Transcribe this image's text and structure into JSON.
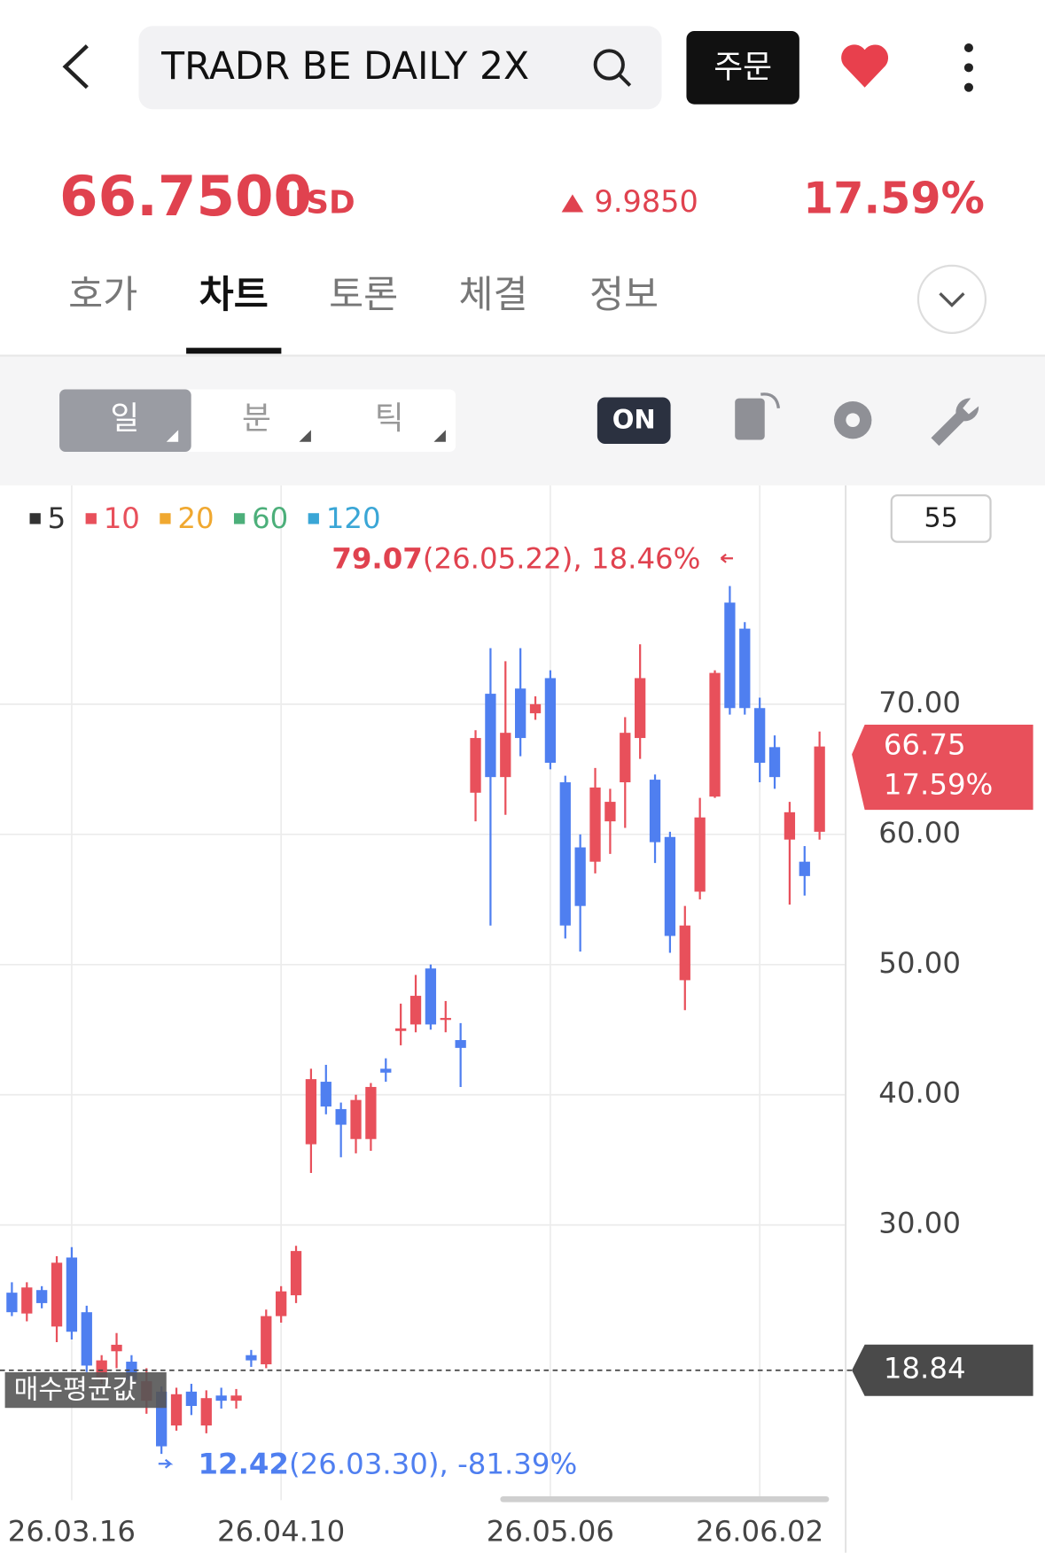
{
  "header": {
    "title": "TRADR BE DAILY 2X",
    "order_button": "주문"
  },
  "quote": {
    "price": "66.7500",
    "currency": "USD",
    "change": "9.9850",
    "change_percent": "17.59%"
  },
  "tabs": [
    "호가",
    "차트",
    "토론",
    "체결",
    "정보"
  ],
  "periods": [
    "일",
    "분",
    "틱"
  ],
  "toggle": "ON",
  "chart_data": {
    "type": "candlestick",
    "moving_averages": [
      {
        "name": "5",
        "color": "#333333"
      },
      {
        "name": "10",
        "color": "#e8505b"
      },
      {
        "name": "20",
        "color": "#f0a830"
      },
      {
        "name": "60",
        "color": "#4caf7a"
      },
      {
        "name": "120",
        "color": "#3aa6d6"
      }
    ],
    "visible_count": 55,
    "categories": [
      null,
      null,
      null,
      null,
      "26.03.16",
      null,
      null,
      null,
      null,
      null,
      null,
      null,
      null,
      null,
      null,
      null,
      null,
      null,
      "26.04.10",
      null,
      null,
      null,
      null,
      null,
      null,
      null,
      null,
      null,
      null,
      null,
      null,
      null,
      null,
      null,
      null,
      null,
      "26.05.06",
      null,
      null,
      null,
      null,
      null,
      null,
      null,
      null,
      null,
      null,
      null,
      null,
      null,
      "26.06.02",
      null,
      null,
      null,
      null
    ],
    "open": [
      24.8,
      23.2,
      25,
      22.2,
      27.5,
      23.3,
      18.3,
      20.3,
      19.5,
      16.5,
      17.2,
      14.6,
      17.2,
      14.6,
      16.9,
      16.5,
      20,
      19.3,
      23,
      24.6,
      36.2,
      41,
      38.9,
      36.6,
      36.6,
      42,
      44.9,
      45.4,
      49.7,
      45.8,
      44.2,
      63.2,
      70.8,
      64.4,
      71.2,
      69.3,
      72,
      64,
      59,
      57.9,
      61,
      64,
      67.4,
      64.2,
      59.8,
      48.8,
      55.6,
      62.9,
      77.8,
      75.8,
      69.7,
      66.7,
      59.6,
      57.9,
      60.2
    ],
    "high": [
      25.6,
      25.6,
      25.3,
      27.6,
      28.3,
      23.8,
      20,
      21.7,
      20,
      19,
      17.6,
      17.5,
      17.8,
      17.3,
      17.5,
      17.4,
      20.4,
      23.5,
      25.3,
      28.4,
      42,
      42.3,
      39.4,
      40,
      40.9,
      42.8,
      47,
      49.2,
      50,
      47.2,
      45.5,
      68,
      74.3,
      73.3,
      74.3,
      70.6,
      72.6,
      64.5,
      60,
      65.1,
      63.5,
      69,
      74.6,
      64.6,
      60.2,
      54.5,
      62.8,
      72.6,
      79.07,
      76.3,
      70.5,
      67.6,
      62.5,
      59.1,
      67.9
    ],
    "low": [
      23,
      22.6,
      23.6,
      21,
      21.2,
      18.7,
      17.8,
      19,
      17.6,
      15.5,
      12.42,
      14.2,
      15.4,
      14,
      15.9,
      15.9,
      19.1,
      19,
      22.5,
      24,
      34,
      38.5,
      35.2,
      35.5,
      35.7,
      41,
      43.8,
      44.8,
      45,
      44.8,
      40.6,
      61,
      53,
      61.5,
      66,
      68.8,
      65,
      52,
      51,
      57,
      58.5,
      60.5,
      65.8,
      57.8,
      50.9,
      46.5,
      55,
      62.8,
      69.2,
      69.2,
      64,
      63.5,
      54.6,
      55.3,
      59.6
    ],
    "close": [
      23.3,
      25.2,
      24,
      27.1,
      21.8,
      19.2,
      19.6,
      20.8,
      18.1,
      18,
      13,
      17,
      16.1,
      16.7,
      16.5,
      16.9,
      19.6,
      23,
      24.9,
      28,
      41.2,
      39.1,
      37.7,
      39.6,
      40.6,
      41.7,
      45.1,
      47.6,
      45.4,
      45.9,
      43.6,
      67.4,
      64.4,
      67.8,
      67.4,
      70,
      65.5,
      53,
      54.5,
      63.6,
      62.5,
      67.8,
      72,
      59.4,
      52.2,
      53,
      61.3,
      72.4,
      69.7,
      69.7,
      65.5,
      64.4,
      61.7,
      56.8,
      66.75
    ],
    "up_color": "#e8505b",
    "down_color": "#4f7ff0",
    "ylim": [
      8.86,
      86.8
    ],
    "yticks": [
      {
        "value": 30,
        "label": "30.00"
      },
      {
        "value": 40,
        "label": "40.00"
      },
      {
        "value": 50,
        "label": "50.00"
      },
      {
        "value": 60,
        "label": "60.00"
      },
      {
        "value": 70,
        "label": "70.00"
      }
    ],
    "grid": true,
    "high_annotation": {
      "value": 79.07,
      "text": "(26.05.22), 18.46%"
    },
    "low_annotation": {
      "value": 12.42,
      "text": "(26.03.30), -81.39%"
    },
    "current": {
      "value": 66.75,
      "change": "17.59%"
    },
    "average": {
      "label": "매수평균값",
      "value": 18.84
    }
  }
}
